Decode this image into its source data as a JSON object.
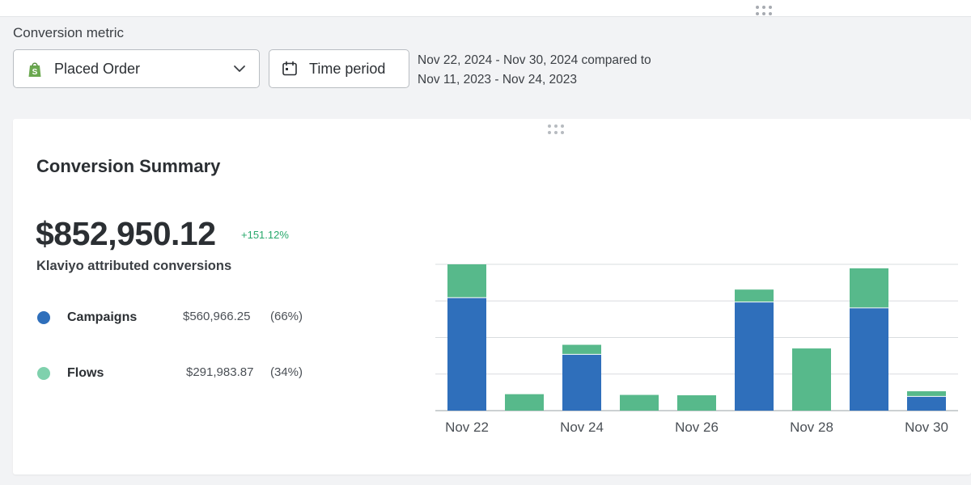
{
  "filters": {
    "metric_label": "Conversion metric",
    "metric_value": "Placed Order",
    "metric_icon": "shopify-bag-icon",
    "time_period_label": "Time period",
    "date_range_line1": "Nov 22, 2024 - Nov 30, 2024 compared to",
    "date_range_line2": "Nov 11, 2023 - Nov 24, 2023"
  },
  "summary": {
    "title": "Conversion Summary",
    "total": "$852,950.12",
    "change": "+151.12%",
    "subtitle": "Klaviyo attributed conversions",
    "legend": [
      {
        "name": "Campaigns",
        "amount": "$560,966.25",
        "percent": "(66%)",
        "color": "#2f6fbb"
      },
      {
        "name": "Flows",
        "amount": "$291,983.87",
        "percent": "(34%)",
        "color": "#57b98b"
      }
    ]
  },
  "colors": {
    "campaigns": "#2f6fbb",
    "flows": "#57b98b",
    "positive": "#27a86b"
  },
  "chart_data": {
    "type": "bar",
    "stacked": true,
    "categories": [
      "Nov 22",
      "Nov 23",
      "Nov 24",
      "Nov 25",
      "Nov 26",
      "Nov 27",
      "Nov 28",
      "Nov 29",
      "Nov 30"
    ],
    "tick_labels": [
      "Nov 22",
      "Nov 24",
      "Nov 26",
      "Nov 28",
      "Nov 30"
    ],
    "series": [
      {
        "name": "Campaigns",
        "color": "#2f6fbb",
        "values": [
          3.1,
          0,
          1.55,
          0,
          0,
          2.98,
          0,
          2.82,
          0.4
        ]
      },
      {
        "name": "Flows",
        "color": "#57b98b",
        "values": [
          0.9,
          0.45,
          0.25,
          0.43,
          0.42,
          0.33,
          1.7,
          1.07,
          0.13
        ]
      }
    ],
    "ylim": [
      0,
      4
    ],
    "gridlines": 4,
    "grid": true
  }
}
